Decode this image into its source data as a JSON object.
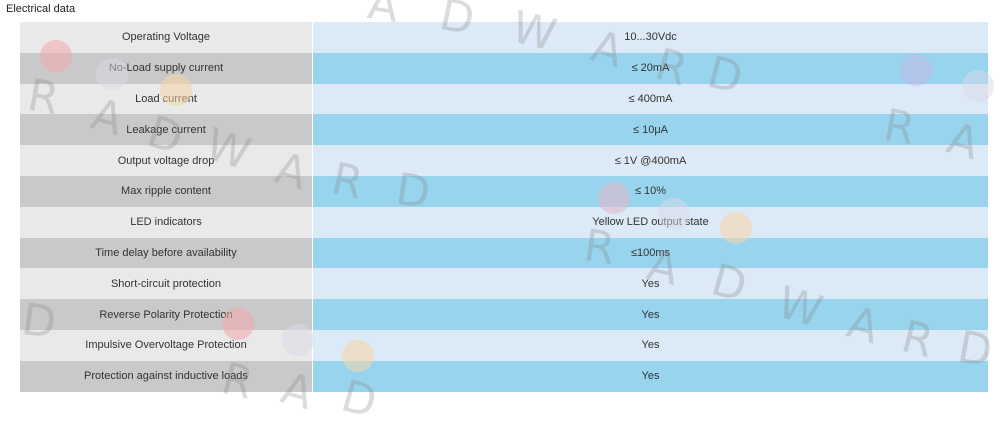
{
  "section_title": "Electrical data",
  "rows": [
    {
      "label": "Operating Voltage",
      "value": "10...30Vdc"
    },
    {
      "label": "No-Load supply current",
      "value": "≤ 20mA"
    },
    {
      "label": "Load current",
      "value": "≤ 400mA"
    },
    {
      "label": "Leakage current",
      "value": "≤ 10μA"
    },
    {
      "label": "Output voltage drop",
      "value": "≤ 1V @400mA"
    },
    {
      "label": "Max ripple content",
      "value": "≤ 10%"
    },
    {
      "label": "LED indicators",
      "value": "Yellow LED output state"
    },
    {
      "label": "Time delay before availability",
      "value": "≤100ms"
    },
    {
      "label": "Short-circuit protection",
      "value": "Yes"
    },
    {
      "label": "Reverse Polarity Protection",
      "value": "Yes"
    },
    {
      "label": "Impulsive Overvoltage Protection",
      "value": "Yes"
    },
    {
      "label": "Protection against inductive loads",
      "value": "Yes"
    }
  ],
  "colors": {
    "label_light": "#e9e9e9",
    "label_dark": "#c9c9c9",
    "value_light": "#dce9f6",
    "value_dark": "#99d4ef"
  },
  "watermark": {
    "text": "RADWARD",
    "letters": [
      "A",
      "D",
      "W",
      "A",
      "R",
      "D",
      "R",
      "A",
      "D",
      "W",
      "A",
      "R",
      "D",
      "R",
      "A",
      "R",
      "A",
      "D",
      "W",
      "A",
      "R",
      "D",
      "D",
      "R",
      "A",
      "D"
    ],
    "dot_colors": [
      "#f3a6ac",
      "#f6d6a6",
      "#d9d9e6",
      "#c9d4f2"
    ]
  }
}
